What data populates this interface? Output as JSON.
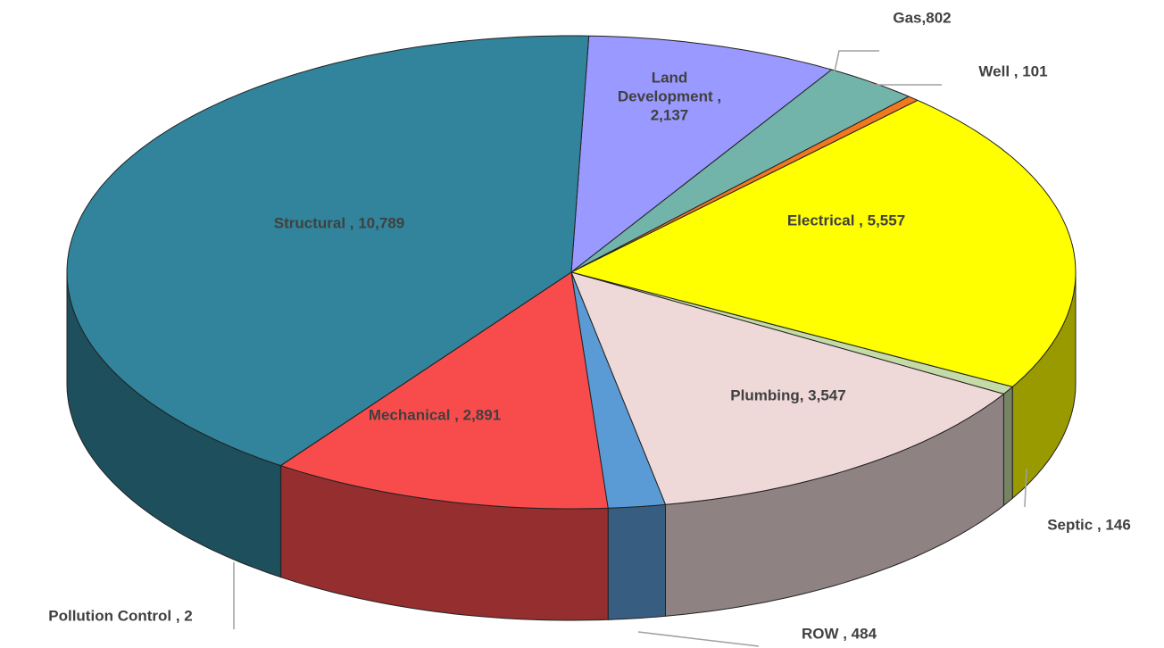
{
  "chart_data": {
    "type": "pie",
    "values": [
      2137,
      802,
      101,
      5557,
      146,
      3547,
      484,
      2891,
      2,
      10789
    ],
    "value_labels": [
      "Land Development , 2,137",
      "Gas,802",
      "Well , 101",
      "Electrical , 5,557",
      "Septic , 146",
      "Plumbing, 3,547",
      "ROW , 484",
      "Mechanical , 2,891",
      "Pollution Control , 2",
      "Structural , 10,789"
    ],
    "colors": [
      "#9999ff",
      "#72b3aa",
      "#f07820",
      "#ffff00",
      "#c4dba8",
      "#efd9d8",
      "#5b9bd5",
      "#f84c4c",
      "#2f4f73",
      "#31849b"
    ]
  }
}
